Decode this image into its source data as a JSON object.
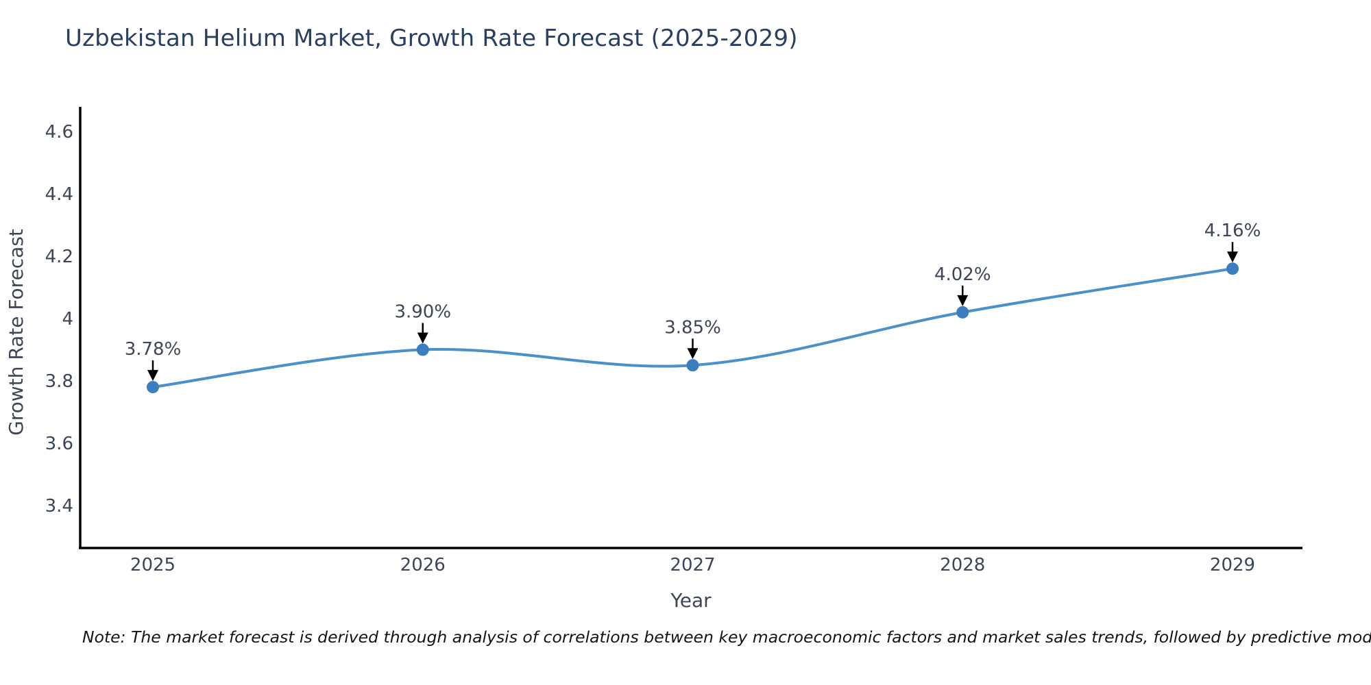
{
  "page": {
    "background": "#ffffff"
  },
  "note": "Note: The market forecast is derived through analysis of correlations between key macroeconomic factors and market sales trends, followed by predictive modeling to project future sales",
  "chart_data": {
    "type": "line",
    "line_shape": "spline",
    "title": "Uzbekistan Helium Market, Growth Rate Forecast (2025-2029)",
    "categories": [
      "2025",
      "2026",
      "2027",
      "2028",
      "2029"
    ],
    "values": [
      3.78,
      3.9,
      3.85,
      4.02,
      4.16
    ],
    "point_labels": [
      "3.78%",
      "3.90%",
      "3.85%",
      "4.02%",
      "4.16%"
    ],
    "xlabel": "Year",
    "ylabel": "Growth Rate Forecast",
    "yticks": [
      4.6,
      4.4,
      4.2,
      4.0,
      3.8,
      3.6,
      3.4
    ],
    "ytick_labels": [
      "4.6",
      "4.4",
      "4.2",
      "4",
      "3.8",
      "3.6",
      "3.4"
    ],
    "ylim": [
      3.26,
      4.67
    ],
    "grid": false,
    "legend": false,
    "annotation_arrow_direction": "down",
    "colors": {
      "line": "#4a90c9",
      "marker": "#3b7ebd",
      "arrow": "#000000",
      "axis": "#000000",
      "title_text": "#2a3f5f",
      "tick_text": "#3d4556",
      "annotation_text": "#3d4556",
      "note_text": "#141414",
      "background": "#ffffff"
    }
  }
}
